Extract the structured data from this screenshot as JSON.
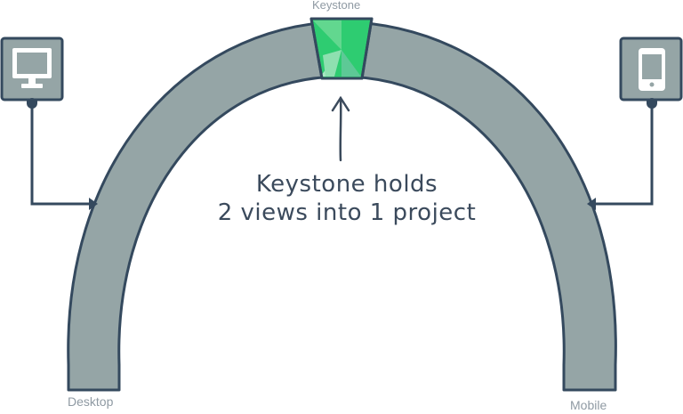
{
  "labels": {
    "keystone": "Keystone",
    "desktop": "Desktop",
    "mobile": "Mobile"
  },
  "caption": {
    "line1": "Keystone holds",
    "line2": "2 views into 1 project"
  },
  "colors": {
    "arch_fill": "#95a5a6",
    "outline": "#34495e",
    "keystone_green": "#2ecc71",
    "keystone_green_light": "#a3e4c0",
    "keystone_green_mid": "#3dbd7d",
    "device_screen": "#ffffff",
    "label_gray": "#8f9aa3",
    "background": "#ffffff"
  },
  "icons": {
    "desktop": "monitor-icon",
    "mobile": "phone-icon"
  }
}
